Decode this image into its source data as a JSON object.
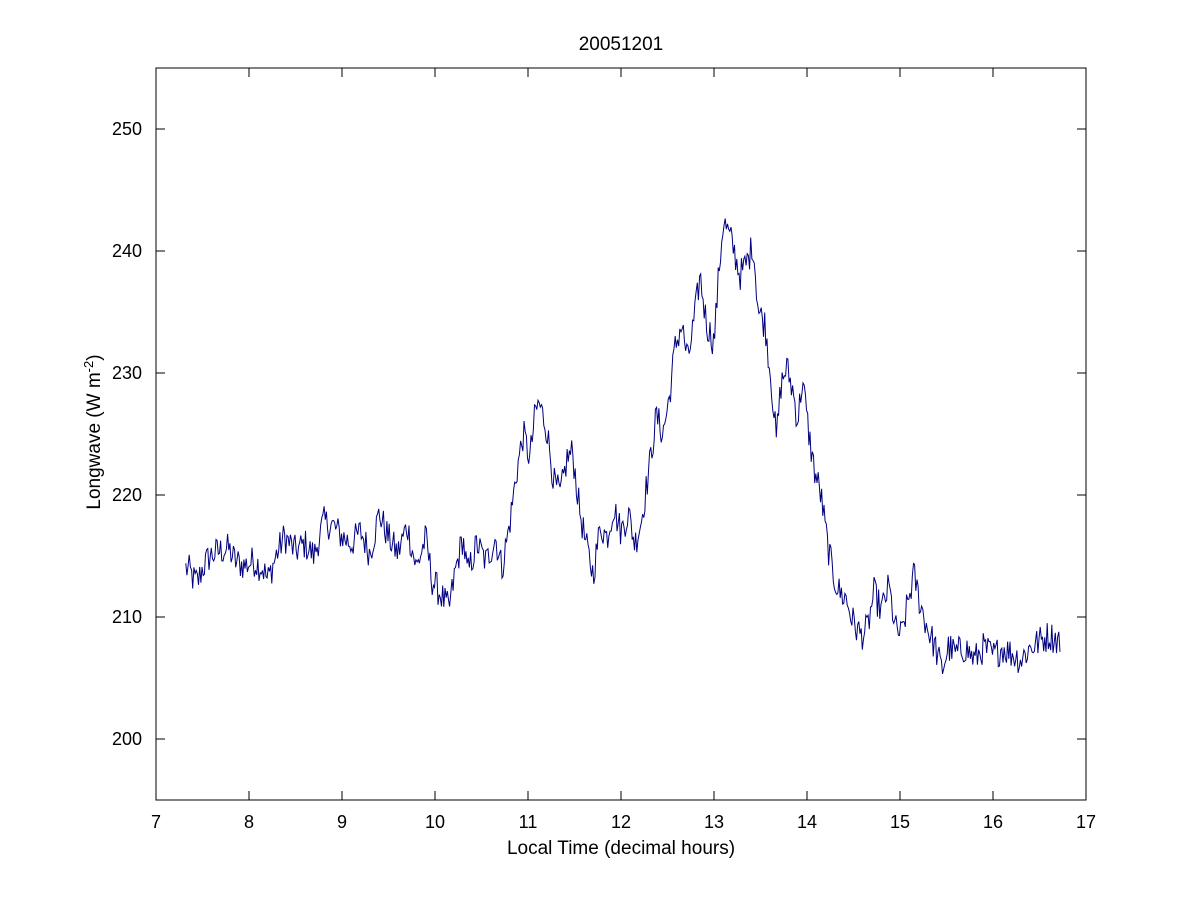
{
  "chart_data": {
    "type": "line",
    "title": "20051201",
    "xlabel": "Local Time (decimal hours)",
    "ylabel": "Longwave (W m",
    "ylabel_sup": "-2",
    "ylabel_close": ")",
    "xlim": [
      7,
      17
    ],
    "ylim": [
      195,
      255
    ],
    "xticks": [
      7,
      8,
      9,
      10,
      11,
      12,
      13,
      14,
      15,
      16,
      17
    ],
    "xtick_labels": [
      "7",
      "8",
      "9",
      "10",
      "11",
      "12",
      "13",
      "14",
      "15",
      "16",
      "17"
    ],
    "yticks": [
      200,
      210,
      220,
      230,
      240,
      250
    ],
    "ytick_labels": [
      "200",
      "210",
      "220",
      "230",
      "240",
      "250"
    ],
    "grid": false,
    "line_color": "#00007f",
    "series": [
      {
        "name": "",
        "anchors": [
          [
            7.32,
            214.0
          ],
          [
            7.36,
            213.8
          ],
          [
            7.4,
            213.1
          ],
          [
            7.45,
            212.9
          ],
          [
            7.5,
            214.0
          ],
          [
            7.58,
            215.0
          ],
          [
            7.68,
            215.4
          ],
          [
            7.78,
            215.6
          ],
          [
            7.85,
            214.6
          ],
          [
            7.95,
            214.2
          ],
          [
            8.05,
            214.6
          ],
          [
            8.15,
            214.0
          ],
          [
            8.2,
            213.0
          ],
          [
            8.3,
            215.2
          ],
          [
            8.38,
            216.6
          ],
          [
            8.5,
            215.4
          ],
          [
            8.6,
            216.0
          ],
          [
            8.7,
            215.0
          ],
          [
            8.8,
            217.8
          ],
          [
            8.9,
            217.5
          ],
          [
            9.0,
            216.6
          ],
          [
            9.1,
            216.0
          ],
          [
            9.2,
            217.0
          ],
          [
            9.3,
            215.2
          ],
          [
            9.4,
            218.5
          ],
          [
            9.5,
            216.5
          ],
          [
            9.6,
            215.2
          ],
          [
            9.7,
            217.5
          ],
          [
            9.8,
            214.0
          ],
          [
            9.9,
            216.5
          ],
          [
            9.97,
            213.0
          ],
          [
            10.05,
            212.0
          ],
          [
            10.15,
            210.6
          ],
          [
            10.22,
            213.8
          ],
          [
            10.3,
            216.5
          ],
          [
            10.35,
            213.5
          ],
          [
            10.45,
            216.0
          ],
          [
            10.55,
            214.5
          ],
          [
            10.65,
            216.5
          ],
          [
            10.72,
            214.0
          ],
          [
            10.8,
            217.5
          ],
          [
            10.88,
            222.0
          ],
          [
            10.95,
            225.0
          ],
          [
            11.02,
            223.0
          ],
          [
            11.08,
            226.8
          ],
          [
            11.12,
            227.5
          ],
          [
            11.2,
            225.5
          ],
          [
            11.28,
            221.0
          ],
          [
            11.35,
            220.0
          ],
          [
            11.42,
            223.0
          ],
          [
            11.48,
            223.5
          ],
          [
            11.55,
            219.0
          ],
          [
            11.62,
            216.0
          ],
          [
            11.7,
            213.5
          ],
          [
            11.78,
            217.5
          ],
          [
            11.85,
            216.5
          ],
          [
            11.92,
            219.0
          ],
          [
            12.0,
            217.0
          ],
          [
            12.08,
            218.5
          ],
          [
            12.15,
            216.0
          ],
          [
            12.22,
            218.0
          ],
          [
            12.3,
            222.0
          ],
          [
            12.38,
            226.5
          ],
          [
            12.45,
            225.0
          ],
          [
            12.52,
            228.0
          ],
          [
            12.58,
            232.0
          ],
          [
            12.65,
            234.0
          ],
          [
            12.72,
            231.0
          ],
          [
            12.8,
            235.0
          ],
          [
            12.85,
            238.0
          ],
          [
            12.92,
            234.0
          ],
          [
            13.0,
            232.5
          ],
          [
            13.05,
            238.0
          ],
          [
            13.1,
            242.5
          ],
          [
            13.15,
            241.5
          ],
          [
            13.2,
            240.5
          ],
          [
            13.28,
            238.0
          ],
          [
            13.35,
            239.0
          ],
          [
            13.42,
            240.5
          ],
          [
            13.48,
            235.0
          ],
          [
            13.55,
            234.0
          ],
          [
            13.62,
            229.0
          ],
          [
            13.67,
            224.5
          ],
          [
            13.72,
            229.0
          ],
          [
            13.78,
            230.5
          ],
          [
            13.85,
            228.5
          ],
          [
            13.9,
            226.0
          ],
          [
            13.95,
            229.5
          ],
          [
            14.02,
            225.0
          ],
          [
            14.08,
            222.0
          ],
          [
            14.15,
            220.0
          ],
          [
            14.22,
            216.0
          ],
          [
            14.28,
            213.5
          ],
          [
            14.35,
            212.0
          ],
          [
            14.42,
            211.5
          ],
          [
            14.5,
            209.5
          ],
          [
            14.58,
            208.5
          ],
          [
            14.65,
            209.0
          ],
          [
            14.72,
            212.0
          ],
          [
            14.8,
            210.5
          ],
          [
            14.88,
            212.5
          ],
          [
            14.95,
            209.0
          ],
          [
            15.02,
            208.5
          ],
          [
            15.08,
            211.0
          ],
          [
            15.15,
            213.5
          ],
          [
            15.22,
            211.0
          ],
          [
            15.3,
            209.0
          ],
          [
            15.38,
            207.5
          ],
          [
            15.45,
            205.6
          ],
          [
            15.52,
            207.5
          ],
          [
            15.6,
            207.0
          ],
          [
            15.7,
            207.5
          ],
          [
            15.8,
            206.5
          ],
          [
            15.9,
            207.5
          ],
          [
            16.0,
            206.8
          ],
          [
            16.1,
            207.5
          ],
          [
            16.2,
            207.0
          ],
          [
            16.3,
            206.5
          ],
          [
            16.4,
            207.5
          ],
          [
            16.5,
            208.0
          ],
          [
            16.6,
            208.5
          ],
          [
            16.68,
            208.2
          ],
          [
            16.72,
            208.0
          ]
        ],
        "resolution_hours": 0.0125,
        "noise_amplitude": 1.3
      }
    ]
  }
}
